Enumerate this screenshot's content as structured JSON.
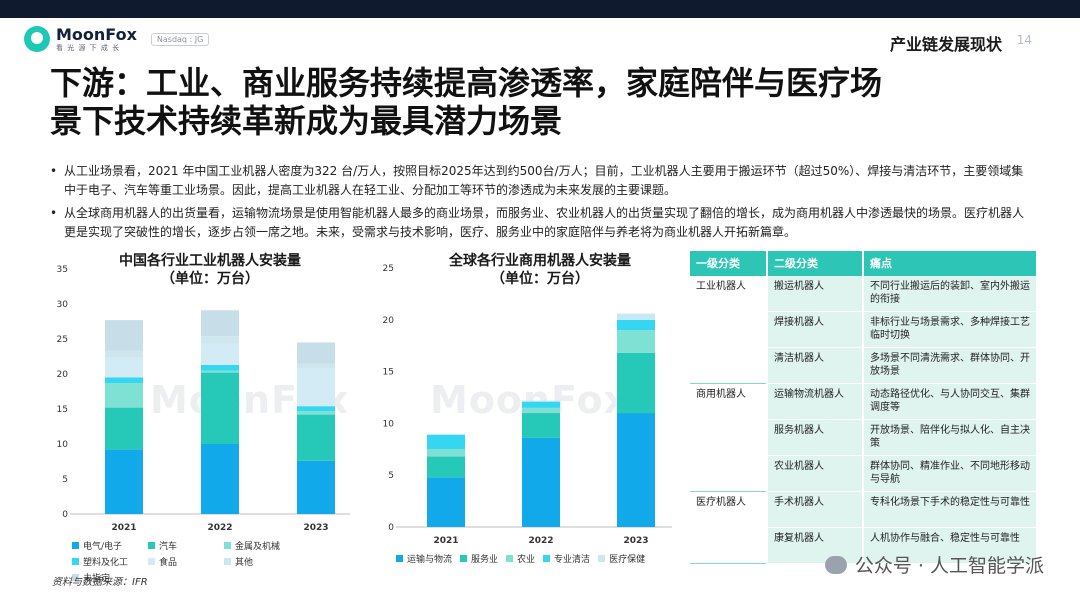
{
  "brand": {
    "name": "MoonFox",
    "tagline": "看 光 源 下 成 长",
    "ticker": "Nasdaq : JG"
  },
  "header": {
    "section": "产业链发展现状",
    "page": "14"
  },
  "headline": {
    "line1": "下游：工业、商业服务持续提高渗透率，家庭陪伴与医疗场",
    "line2": "景下技术持续革新成为最具潜力场景"
  },
  "bullets": [
    "从工业场景看，2021 年中国工业机器人密度为322 台/万人，按照目标2025年达到约500台/万人；目前，工业机器人主要用于搬运环节（超过50%）、焊接与清洁环节，主要领域集中于电子、汽车等重工业场景。因此，提高工业机器人在轻工业、分配加工等环节的渗透成为未来发展的主要课题。",
    "从全球商用机器人的出货量看，运输物流场景是使用智能机器人最多的商业场景，而服务业、农业机器人的出货量实现了翻倍的增长，成为商用机器人中渗透最快的场景。医疗机器人更是实现了突破性的增长，逐步占领一席之地。未来，受需求与技术影响，医疗、服务业中的家庭陪伴与养老将为商业机器人开拓新篇章。"
  ],
  "chart_data": [
    {
      "type": "bar",
      "stacked": true,
      "title": "中国各行业工业机器人安装量",
      "subtitle": "（单位：万台）",
      "categories": [
        "2021",
        "2022",
        "2023"
      ],
      "ylim": [
        0,
        35
      ],
      "yticks": [
        0,
        5,
        10,
        15,
        20,
        25,
        30,
        35
      ],
      "grid": false,
      "legend": "bottom",
      "series": [
        {
          "name": "电气/电子",
          "color": "#12a9ea",
          "values": [
            9.2,
            10.0,
            7.6
          ]
        },
        {
          "name": "汽车",
          "color": "#26c9b8",
          "values": [
            6.0,
            10.2,
            6.6
          ]
        },
        {
          "name": "金属及机械",
          "color": "#7fe0d4",
          "values": [
            3.5,
            0.3,
            0.5
          ]
        },
        {
          "name": "塑料及化工",
          "color": "#35d6f2",
          "values": [
            0.8,
            0.8,
            0.7
          ]
        },
        {
          "name": "食品",
          "color": "#d2ebf5",
          "values": [
            2.8,
            3.0,
            5.4
          ]
        },
        {
          "name": "其他",
          "color": "#cfe6ee",
          "values": [
            1.0,
            1.1,
            0.7
          ]
        },
        {
          "name": "未指定",
          "color": "#c7dde8",
          "values": [
            4.4,
            3.7,
            3.0
          ]
        }
      ]
    },
    {
      "type": "bar",
      "stacked": true,
      "title": "全球各行业商用机器人安装量",
      "subtitle": "（单位：万台）",
      "categories": [
        "2021",
        "2022",
        "2023"
      ],
      "ylim": [
        0,
        25
      ],
      "yticks": [
        0,
        5,
        10,
        15,
        20,
        25
      ],
      "grid": false,
      "legend": "bottom",
      "series": [
        {
          "name": "运输与物流",
          "color": "#12a9ea",
          "values": [
            4.8,
            8.6,
            11.0
          ]
        },
        {
          "name": "服务业",
          "color": "#26c9b8",
          "values": [
            2.0,
            2.4,
            5.8
          ]
        },
        {
          "name": "农业",
          "color": "#7fe0d4",
          "values": [
            0.7,
            0.5,
            2.2
          ]
        },
        {
          "name": "专业清洁",
          "color": "#35d6f2",
          "values": [
            1.4,
            0.6,
            1.0
          ]
        },
        {
          "name": "医疗保健",
          "color": "#c9e8f3",
          "values": [
            0.1,
            0.1,
            0.6
          ]
        }
      ]
    }
  ],
  "table": {
    "headers": [
      "一级分类",
      "二级分类",
      "痛点"
    ],
    "groups": [
      {
        "category": "工业机器人",
        "rows": [
          {
            "sub": "搬运机器人",
            "pain": "不同行业搬运后的装卸、室内外搬运的衔接"
          },
          {
            "sub": "焊接机器人",
            "pain": "非标行业与场景需求、多种焊接工艺临时切换"
          },
          {
            "sub": "清洁机器人",
            "pain": "多场景不同清洗需求、群体协同、开放场景"
          }
        ]
      },
      {
        "category": "商用机器人",
        "rows": [
          {
            "sub": "运输物流机器人",
            "pain": "动态路径优化、与人协同交互、集群调度等"
          },
          {
            "sub": "服务机器人",
            "pain": "开放场景、陪伴化与拟人化、自主决策"
          },
          {
            "sub": "农业机器人",
            "pain": "群体协同、精准作业、不同地形移动与导航"
          }
        ]
      },
      {
        "category": "医疗机器人",
        "rows": [
          {
            "sub": "手术机器人",
            "pain": "专科化场景下手术的稳定性与可靠性"
          },
          {
            "sub": "康复机器人",
            "pain": "人机协作与融合、稳定性与可靠性"
          }
        ]
      }
    ]
  },
  "source": "资料与数据来源：IFR",
  "watermark": {
    "text": "MoonFox",
    "footer": "公众号 · 人工智能学派"
  }
}
